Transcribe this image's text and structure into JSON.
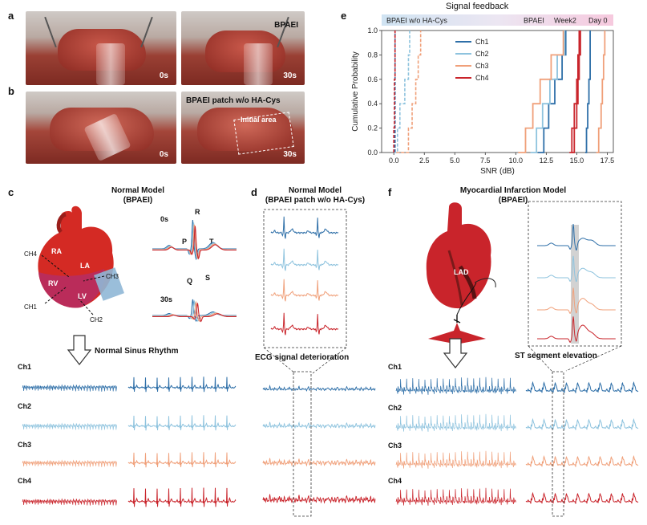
{
  "panels": {
    "a": "a",
    "b": "b",
    "c": "c",
    "d": "d",
    "e": "e",
    "f": "f"
  },
  "photos": {
    "a_left_time": "0s",
    "a_right_time": "30s",
    "a_right_label": "BPAEI",
    "b_left_time": "0s",
    "b_right_time": "30s",
    "b_right_label": "BPAEI patch w/o HA-Cys",
    "b_right_area": "Initial area"
  },
  "panel_c": {
    "title_line1": "Normal Model",
    "title_line2": "(BPAEI)",
    "heart_labels": {
      "ra": "RA",
      "la": "LA",
      "rv": "RV",
      "lv": "LV"
    },
    "channel_labels": {
      "ch1": "CH1",
      "ch2": "CH2",
      "ch3": "CH3",
      "ch4": "CH4"
    },
    "waves": {
      "p": "P",
      "q": "Q",
      "r": "R",
      "s": "S",
      "t": "T",
      "t0": "0s",
      "t30": "30s"
    },
    "rhythm_title": "Normal Sinus Rhythm"
  },
  "panel_d": {
    "title_line1": "Normal Model",
    "title_line2": "(BPAEI patch w/o HA-Cys)",
    "rhythm_title": "ECG signal deterioration"
  },
  "panel_f": {
    "title_line1": "Myocardial Infarction Model",
    "title_line2": "(BPAEI)",
    "lad": "LAD",
    "rhythm_title": "ST segment elevation"
  },
  "trace_labels": [
    "Ch1",
    "Ch2",
    "Ch3",
    "Ch4"
  ],
  "colors": {
    "ch1": "#2e6fa8",
    "ch2": "#8ec3de",
    "ch3": "#f0a07a",
    "ch4": "#c9242b"
  },
  "chart_data": {
    "type": "line",
    "title": "Signal feedback",
    "xlabel": "SNR (dB)",
    "ylabel": "Cumulative Probability",
    "xlim": [
      -1,
      18
    ],
    "ylim": [
      0,
      1.0
    ],
    "xticks": [
      "0.0",
      "2.5",
      "5.0",
      "7.5",
      "10.0",
      "12.5",
      "15.0",
      "17.5"
    ],
    "yticks": [
      "0.0",
      "0.2",
      "0.4",
      "0.6",
      "0.8",
      "1.0"
    ],
    "band_labels": {
      "wo": "BPAEI w/o HA-Cys",
      "bpaei": "BPAEI",
      "week2": "Week2",
      "day0": "Day 0"
    },
    "legend": [
      "Ch1",
      "Ch2",
      "Ch3",
      "Ch4"
    ],
    "series": [
      {
        "name": "Ch1",
        "group": "wo",
        "dashed": true,
        "x": [
          0.1,
          0.1,
          0.1,
          0.1,
          0.1,
          0.1
        ],
        "y": [
          0,
          0.2,
          0.4,
          0.6,
          0.8,
          1.0
        ]
      },
      {
        "name": "Ch2",
        "group": "wo",
        "dashed": true,
        "x": [
          0.0,
          0.3,
          0.5,
          0.9,
          1.2,
          1.3
        ],
        "y": [
          0,
          0.2,
          0.4,
          0.6,
          0.8,
          1.0
        ]
      },
      {
        "name": "Ch3",
        "group": "wo",
        "dashed": true,
        "x": [
          0.2,
          1.2,
          1.5,
          1.8,
          2.0,
          2.2
        ],
        "y": [
          0,
          0.2,
          0.4,
          0.6,
          0.8,
          1.0
        ]
      },
      {
        "name": "Ch4",
        "group": "wo",
        "dashed": true,
        "x": [
          0.0,
          0.0,
          0.05,
          0.05,
          0.1,
          0.1
        ],
        "y": [
          0,
          0.2,
          0.4,
          0.6,
          0.8,
          1.0
        ]
      },
      {
        "name": "Ch1",
        "group": "week2",
        "dashed": false,
        "x": [
          11.8,
          12.3,
          12.7,
          13.2,
          13.8,
          14.1
        ],
        "y": [
          0,
          0.2,
          0.4,
          0.6,
          0.8,
          1.0
        ]
      },
      {
        "name": "Ch2",
        "group": "week2",
        "dashed": false,
        "x": [
          11.2,
          11.7,
          12.2,
          12.8,
          13.4,
          14.0
        ],
        "y": [
          0,
          0.2,
          0.4,
          0.6,
          0.8,
          1.0
        ]
      },
      {
        "name": "Ch3",
        "group": "week2",
        "dashed": false,
        "x": [
          10.2,
          10.8,
          11.4,
          12.0,
          12.9,
          13.9
        ],
        "y": [
          0,
          0.2,
          0.4,
          0.6,
          0.8,
          1.0
        ]
      },
      {
        "name": "Ch4",
        "group": "week2",
        "dashed": false,
        "x": [
          14.6,
          14.8,
          15.0,
          15.1,
          15.2,
          15.3
        ],
        "y": [
          0,
          0.2,
          0.4,
          0.6,
          0.8,
          1.0
        ]
      },
      {
        "name": "Ch1",
        "group": "day0",
        "dashed": false,
        "x": [
          15.7,
          15.8,
          15.9,
          16.0,
          16.1,
          16.1
        ],
        "y": [
          0,
          0.2,
          0.4,
          0.6,
          0.8,
          1.0
        ]
      },
      {
        "name": "Ch3",
        "group": "day0",
        "dashed": false,
        "x": [
          16.6,
          16.8,
          17.0,
          17.1,
          17.2,
          17.3
        ],
        "y": [
          0,
          0.2,
          0.4,
          0.6,
          0.8,
          1.0
        ]
      },
      {
        "name": "Ch4",
        "group": "day0",
        "dashed": false,
        "x": [
          14.4,
          14.6,
          14.8,
          15.0,
          15.1,
          15.2
        ],
        "y": [
          0,
          0.2,
          0.4,
          0.6,
          0.8,
          1.0
        ]
      }
    ]
  }
}
